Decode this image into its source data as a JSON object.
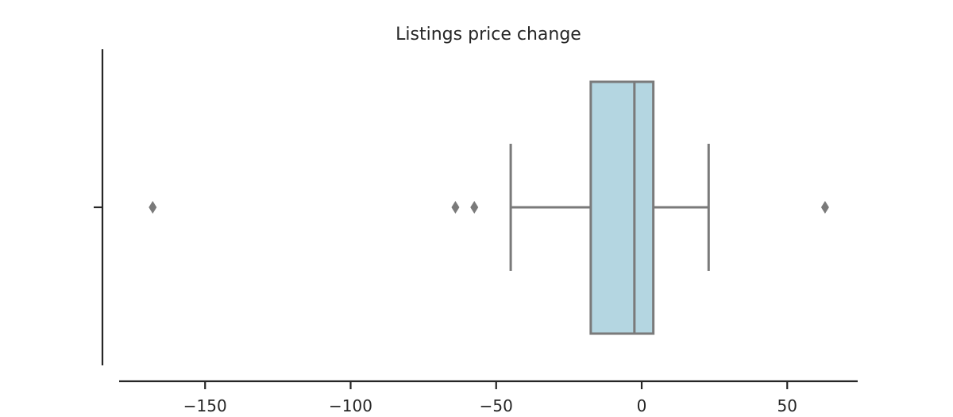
{
  "chart_data": {
    "type": "box",
    "title": "Listings price change",
    "orientation": "horizontal",
    "xlim": [
      -180,
      75
    ],
    "xticks": [
      -150,
      -100,
      -50,
      0,
      50
    ],
    "xtick_labels": [
      "−150",
      "−100",
      "−50",
      "0",
      "50"
    ],
    "box": {
      "q1": -17.5,
      "median": -2.5,
      "q3": 4,
      "whisker_low": -45,
      "whisker_high": 23
    },
    "fliers": [
      -168,
      -64,
      -57.5,
      63
    ],
    "grid": false,
    "colors": {
      "box_fill": "#b4d6e1",
      "box_edge": "#7a7a7a",
      "axis": "#262626"
    }
  }
}
